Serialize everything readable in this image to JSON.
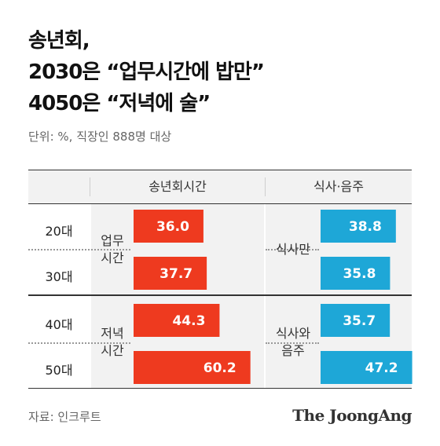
{
  "title": {
    "line1": "송년회,",
    "line2": "2030은 “업무시간에 밥만”",
    "line3": "4050은 “저녁에 술”"
  },
  "unit_note": "단위: %, 직장인 888명 대상",
  "source": "자료: 인크루트",
  "logo": "The JoongAng",
  "colors": {
    "time_bar": "#ee3a1f",
    "activity_bar": "#1ea7d7",
    "bar_text": "#ffffff"
  },
  "chart_data": [
    {
      "type": "bar",
      "title": "송년회시간",
      "categories": [
        "20대",
        "30대",
        "40대",
        "50대"
      ],
      "groups": [
        {
          "label": [
            "업무",
            "시간"
          ],
          "rows": [
            0,
            1
          ]
        },
        {
          "label": [
            "저녁",
            "시간"
          ],
          "rows": [
            2,
            3
          ]
        }
      ],
      "values": [
        36.0,
        37.7,
        44.3,
        60.2
      ],
      "value_labels": [
        "36.0",
        "37.7",
        "44.3",
        "60.2"
      ]
    },
    {
      "type": "bar",
      "title": "식사·음주",
      "categories": [
        "20대",
        "30대",
        "40대",
        "50대"
      ],
      "groups": [
        {
          "label": [
            "식사만"
          ],
          "rows": [
            0,
            1
          ]
        },
        {
          "label": [
            "식사와",
            "음주"
          ],
          "rows": [
            2,
            3
          ]
        }
      ],
      "values": [
        38.8,
        35.8,
        35.7,
        47.2
      ],
      "value_labels": [
        "38.8",
        "35.8",
        "35.7",
        "47.2"
      ]
    }
  ]
}
